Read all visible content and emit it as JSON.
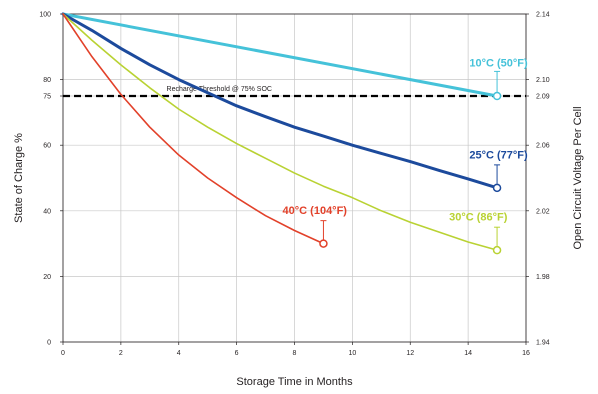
{
  "chart_data": {
    "type": "line",
    "xlabel": "Storage Time in Months",
    "ylabel": "State of Charge %",
    "y2label": "Open Circuit Voltage Per Cell",
    "xlim": [
      0,
      16
    ],
    "ylim": [
      0,
      100
    ],
    "y2lim": [
      1.94,
      2.14
    ],
    "grid": true,
    "x_ticks": [
      "0",
      "2",
      "4",
      "6",
      "8",
      "10",
      "12",
      "14",
      "16"
    ],
    "y_ticks": [
      "0",
      "20",
      "40",
      "60",
      "75",
      "80",
      "100"
    ],
    "y2_ticks": [
      "1.94",
      "1.98",
      "2.02",
      "2.06",
      "2.09",
      "2.10",
      "2.14"
    ],
    "threshold": {
      "label": "Recharge Threshold @ 75% SOC",
      "value": 75
    },
    "series": [
      {
        "name": "10°C (50°F)",
        "color": "#45c2d9",
        "x": [
          0,
          15
        ],
        "y": [
          100,
          75
        ]
      },
      {
        "name": "25°C (77°F)",
        "color": "#1c4a9c",
        "x": [
          0,
          1,
          2,
          3,
          4,
          5,
          6,
          7,
          8,
          9,
          10,
          11,
          12,
          13,
          14,
          15
        ],
        "y": [
          100,
          95,
          89.5,
          84.5,
          80,
          76,
          72,
          68.7,
          65.5,
          62.8,
          60,
          57.5,
          55,
          52.3,
          49.7,
          47
        ]
      },
      {
        "name": "30°C (86°F)",
        "color": "#b9d233",
        "x": [
          0,
          1,
          2,
          3,
          4,
          5,
          6,
          7,
          8,
          9,
          10,
          11,
          12,
          13,
          14,
          15
        ],
        "y": [
          100,
          92,
          84.5,
          77.5,
          71,
          65.5,
          60.5,
          56,
          51.5,
          47.5,
          44,
          40,
          36.5,
          33.5,
          30.5,
          28
        ]
      },
      {
        "name": "40°C (104°F)",
        "color": "#e2412a",
        "x": [
          0,
          1,
          2,
          3,
          4,
          5,
          6,
          7,
          8,
          9
        ],
        "y": [
          100,
          87,
          75.5,
          65.5,
          57,
          50,
          44,
          38.5,
          34,
          30
        ]
      }
    ]
  }
}
